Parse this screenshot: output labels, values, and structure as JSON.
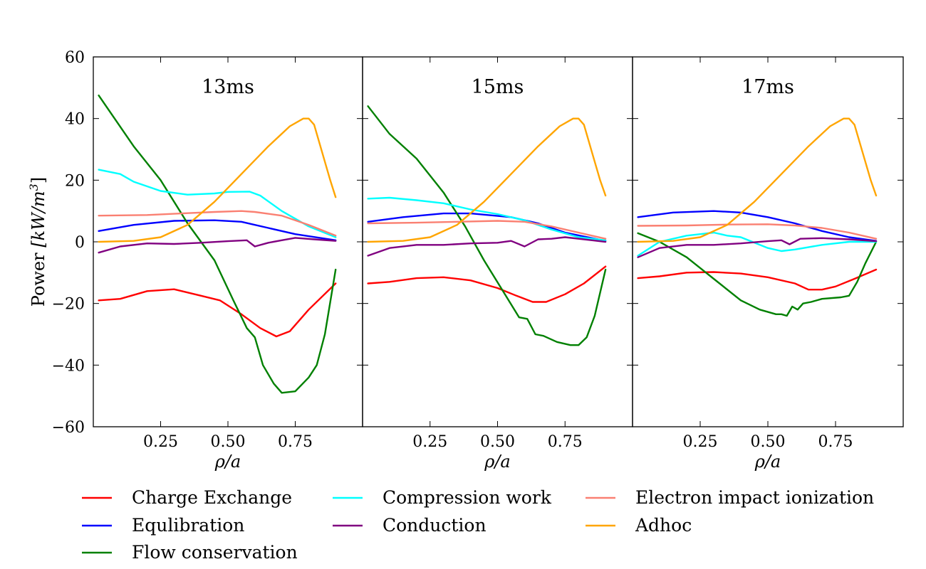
{
  "chart_data": {
    "type": "line",
    "ylabel_text": "Power ",
    "ylabel_unit": "[kW/m",
    "ylabel_unit_sup": "3",
    "ylabel_unit_close": "]",
    "xlabel": "ρ/a",
    "xlim": [
      0.0,
      1.0
    ],
    "ylim": [
      -60,
      60
    ],
    "xticks": [
      {
        "value": 0.25,
        "label": "0.25"
      },
      {
        "value": 0.5,
        "label": "0.50"
      },
      {
        "value": 0.75,
        "label": "0.75"
      }
    ],
    "yticks": [
      {
        "value": -60,
        "label": "−60"
      },
      {
        "value": -40,
        "label": "−40"
      },
      {
        "value": -20,
        "label": "−20"
      },
      {
        "value": 0,
        "label": "0"
      },
      {
        "value": 20,
        "label": "20"
      },
      {
        "value": 40,
        "label": "40"
      },
      {
        "value": 60,
        "label": "60"
      }
    ],
    "legend_placement": "bottom",
    "series_meta": [
      {
        "key": "cx",
        "name": "Charge Exchange",
        "color": "#ff0000"
      },
      {
        "key": "eq",
        "name": "Equlibration",
        "color": "#0000ff"
      },
      {
        "key": "flow",
        "name": "Flow conservation",
        "color": "#008000"
      },
      {
        "key": "comp",
        "name": "Compression work",
        "color": "#00ffff"
      },
      {
        "key": "cond",
        "name": "Conduction",
        "color": "#800080"
      },
      {
        "key": "eii",
        "name": "Electron impact ionization",
        "color": "#fa8072"
      },
      {
        "key": "adhoc",
        "name": "Adhoc",
        "color": "#ffa500"
      }
    ],
    "panels": [
      {
        "title": "13ms",
        "series": {
          "cx": [
            [
              0.02,
              -19
            ],
            [
              0.1,
              -18.5
            ],
            [
              0.2,
              -16
            ],
            [
              0.3,
              -15.4
            ],
            [
              0.4,
              -17.5
            ],
            [
              0.47,
              -19
            ],
            [
              0.55,
              -23.5
            ],
            [
              0.62,
              -28
            ],
            [
              0.68,
              -30.7
            ],
            [
              0.73,
              -29
            ],
            [
              0.8,
              -22
            ],
            [
              0.9,
              -13.5
            ]
          ],
          "eq": [
            [
              0.02,
              3.5
            ],
            [
              0.15,
              5.5
            ],
            [
              0.3,
              6.8
            ],
            [
              0.45,
              7
            ],
            [
              0.55,
              6.5
            ],
            [
              0.65,
              4.5
            ],
            [
              0.75,
              2.5
            ],
            [
              0.9,
              0.5
            ]
          ],
          "flow": [
            [
              0.02,
              47.5
            ],
            [
              0.15,
              31
            ],
            [
              0.25,
              20
            ],
            [
              0.35,
              6
            ],
            [
              0.45,
              -6
            ],
            [
              0.52,
              -19
            ],
            [
              0.57,
              -28
            ],
            [
              0.6,
              -31
            ],
            [
              0.63,
              -40
            ],
            [
              0.67,
              -46
            ],
            [
              0.7,
              -49
            ],
            [
              0.75,
              -48.5
            ],
            [
              0.8,
              -44
            ],
            [
              0.83,
              -40
            ],
            [
              0.86,
              -30
            ],
            [
              0.9,
              -9
            ]
          ],
          "comp": [
            [
              0.02,
              23.4
            ],
            [
              0.1,
              22
            ],
            [
              0.15,
              19.5
            ],
            [
              0.25,
              16.5
            ],
            [
              0.35,
              15.3
            ],
            [
              0.45,
              15.7
            ],
            [
              0.5,
              16.2
            ],
            [
              0.58,
              16.3
            ],
            [
              0.62,
              15
            ],
            [
              0.7,
              10
            ],
            [
              0.8,
              5
            ],
            [
              0.9,
              1.5
            ]
          ],
          "cond": [
            [
              0.02,
              -3.5
            ],
            [
              0.1,
              -1.5
            ],
            [
              0.2,
              -0.5
            ],
            [
              0.3,
              -0.7
            ],
            [
              0.4,
              -0.3
            ],
            [
              0.5,
              0.2
            ],
            [
              0.57,
              0.5
            ],
            [
              0.6,
              -1.5
            ],
            [
              0.65,
              -0.3
            ],
            [
              0.7,
              0.5
            ],
            [
              0.75,
              1.3
            ],
            [
              0.82,
              0.8
            ],
            [
              0.9,
              0.3
            ]
          ],
          "eii": [
            [
              0.02,
              8.5
            ],
            [
              0.2,
              8.7
            ],
            [
              0.35,
              9.3
            ],
            [
              0.45,
              9.7
            ],
            [
              0.55,
              10
            ],
            [
              0.6,
              9.7
            ],
            [
              0.7,
              8.5
            ],
            [
              0.8,
              5.5
            ],
            [
              0.9,
              2
            ]
          ],
          "adhoc": [
            [
              0.02,
              0
            ],
            [
              0.15,
              0.3
            ],
            [
              0.25,
              1.5
            ],
            [
              0.35,
              5.5
            ],
            [
              0.45,
              13
            ],
            [
              0.55,
              22
            ],
            [
              0.65,
              31
            ],
            [
              0.73,
              37.5
            ],
            [
              0.78,
              40
            ],
            [
              0.8,
              40
            ],
            [
              0.82,
              38
            ],
            [
              0.85,
              29
            ],
            [
              0.88,
              20
            ],
            [
              0.9,
              14.5
            ]
          ]
        }
      },
      {
        "title": "15ms",
        "series": {
          "cx": [
            [
              0.02,
              -13.5
            ],
            [
              0.1,
              -13
            ],
            [
              0.2,
              -11.8
            ],
            [
              0.3,
              -11.5
            ],
            [
              0.4,
              -12.5
            ],
            [
              0.5,
              -15
            ],
            [
              0.57,
              -17.5
            ],
            [
              0.63,
              -19.5
            ],
            [
              0.68,
              -19.5
            ],
            [
              0.75,
              -17
            ],
            [
              0.82,
              -13.5
            ],
            [
              0.9,
              -8
            ]
          ],
          "eq": [
            [
              0.02,
              6.5
            ],
            [
              0.15,
              8
            ],
            [
              0.3,
              9.2
            ],
            [
              0.4,
              9.2
            ],
            [
              0.55,
              8
            ],
            [
              0.65,
              6
            ],
            [
              0.75,
              3
            ],
            [
              0.9,
              0.3
            ]
          ],
          "flow": [
            [
              0.02,
              44
            ],
            [
              0.1,
              35
            ],
            [
              0.2,
              27
            ],
            [
              0.3,
              16
            ],
            [
              0.38,
              5
            ],
            [
              0.45,
              -6
            ],
            [
              0.52,
              -16
            ],
            [
              0.58,
              -24.5
            ],
            [
              0.61,
              -25
            ],
            [
              0.64,
              -30
            ],
            [
              0.67,
              -30.5
            ],
            [
              0.72,
              -32.5
            ],
            [
              0.77,
              -33.5
            ],
            [
              0.8,
              -33.5
            ],
            [
              0.83,
              -31
            ],
            [
              0.86,
              -24
            ],
            [
              0.9,
              -9
            ]
          ],
          "comp": [
            [
              0.02,
              14
            ],
            [
              0.1,
              14.3
            ],
            [
              0.2,
              13.5
            ],
            [
              0.3,
              12.5
            ],
            [
              0.4,
              10.5
            ],
            [
              0.5,
              9
            ],
            [
              0.6,
              7
            ],
            [
              0.7,
              4
            ],
            [
              0.8,
              1.5
            ],
            [
              0.9,
              0.5
            ]
          ],
          "cond": [
            [
              0.02,
              -4.5
            ],
            [
              0.1,
              -2
            ],
            [
              0.2,
              -1
            ],
            [
              0.3,
              -1
            ],
            [
              0.4,
              -0.5
            ],
            [
              0.5,
              -0.3
            ],
            [
              0.55,
              0.3
            ],
            [
              0.6,
              -1.5
            ],
            [
              0.65,
              0.8
            ],
            [
              0.7,
              1
            ],
            [
              0.75,
              1.5
            ],
            [
              0.85,
              0.5
            ],
            [
              0.9,
              0
            ]
          ],
          "eii": [
            [
              0.02,
              6
            ],
            [
              0.2,
              6.2
            ],
            [
              0.35,
              6.5
            ],
            [
              0.5,
              6.8
            ],
            [
              0.6,
              6.5
            ],
            [
              0.7,
              5
            ],
            [
              0.8,
              3
            ],
            [
              0.9,
              1
            ]
          ],
          "adhoc": [
            [
              0.02,
              0
            ],
            [
              0.15,
              0.3
            ],
            [
              0.25,
              1.5
            ],
            [
              0.35,
              5.5
            ],
            [
              0.45,
              13
            ],
            [
              0.55,
              22
            ],
            [
              0.65,
              31
            ],
            [
              0.73,
              37.5
            ],
            [
              0.78,
              40
            ],
            [
              0.8,
              40
            ],
            [
              0.82,
              38
            ],
            [
              0.85,
              29
            ],
            [
              0.88,
              20
            ],
            [
              0.9,
              15
            ]
          ]
        }
      },
      {
        "title": "17ms",
        "series": {
          "cx": [
            [
              0.02,
              -11.8
            ],
            [
              0.1,
              -11.2
            ],
            [
              0.2,
              -10
            ],
            [
              0.3,
              -9.8
            ],
            [
              0.4,
              -10.3
            ],
            [
              0.5,
              -11.5
            ],
            [
              0.6,
              -13.5
            ],
            [
              0.65,
              -15.5
            ],
            [
              0.7,
              -15.5
            ],
            [
              0.75,
              -14.5
            ],
            [
              0.82,
              -12
            ],
            [
              0.9,
              -9
            ]
          ],
          "eq": [
            [
              0.02,
              8
            ],
            [
              0.15,
              9.5
            ],
            [
              0.3,
              10
            ],
            [
              0.4,
              9.5
            ],
            [
              0.5,
              8
            ],
            [
              0.6,
              6
            ],
            [
              0.7,
              3.5
            ],
            [
              0.8,
              1.5
            ],
            [
              0.9,
              0.3
            ]
          ],
          "flow": [
            [
              0.02,
              2.8
            ],
            [
              0.1,
              0
            ],
            [
              0.2,
              -5
            ],
            [
              0.3,
              -12
            ],
            [
              0.4,
              -19
            ],
            [
              0.47,
              -22
            ],
            [
              0.53,
              -23.5
            ],
            [
              0.55,
              -23.5
            ],
            [
              0.57,
              -24
            ],
            [
              0.59,
              -21
            ],
            [
              0.61,
              -22
            ],
            [
              0.63,
              -20
            ],
            [
              0.66,
              -19.5
            ],
            [
              0.7,
              -18.5
            ],
            [
              0.77,
              -18
            ],
            [
              0.8,
              -17.5
            ],
            [
              0.83,
              -13
            ],
            [
              0.86,
              -7
            ],
            [
              0.9,
              0
            ]
          ],
          "comp": [
            [
              0.02,
              -4.5
            ],
            [
              0.1,
              0
            ],
            [
              0.2,
              2
            ],
            [
              0.25,
              2.5
            ],
            [
              0.3,
              3
            ],
            [
              0.35,
              2
            ],
            [
              0.4,
              1.5
            ],
            [
              0.5,
              -2
            ],
            [
              0.55,
              -3
            ],
            [
              0.6,
              -2.5
            ],
            [
              0.7,
              -1
            ],
            [
              0.8,
              0
            ],
            [
              0.9,
              0
            ]
          ],
          "cond": [
            [
              0.02,
              -5
            ],
            [
              0.1,
              -2
            ],
            [
              0.2,
              -1
            ],
            [
              0.3,
              -1
            ],
            [
              0.4,
              -0.5
            ],
            [
              0.5,
              0.2
            ],
            [
              0.55,
              0.5
            ],
            [
              0.58,
              -0.8
            ],
            [
              0.62,
              1
            ],
            [
              0.7,
              1.2
            ],
            [
              0.8,
              0.8
            ],
            [
              0.9,
              0.2
            ]
          ],
          "eii": [
            [
              0.02,
              5.2
            ],
            [
              0.2,
              5.3
            ],
            [
              0.35,
              5.6
            ],
            [
              0.5,
              5.7
            ],
            [
              0.6,
              5.3
            ],
            [
              0.7,
              4.5
            ],
            [
              0.8,
              3
            ],
            [
              0.9,
              1
            ]
          ],
          "adhoc": [
            [
              0.02,
              0
            ],
            [
              0.15,
              0.3
            ],
            [
              0.25,
              1.5
            ],
            [
              0.35,
              5.5
            ],
            [
              0.45,
              13
            ],
            [
              0.55,
              22
            ],
            [
              0.65,
              31
            ],
            [
              0.73,
              37.5
            ],
            [
              0.78,
              40
            ],
            [
              0.8,
              40
            ],
            [
              0.82,
              38
            ],
            [
              0.85,
              29
            ],
            [
              0.88,
              20
            ],
            [
              0.9,
              15
            ]
          ]
        }
      }
    ]
  }
}
